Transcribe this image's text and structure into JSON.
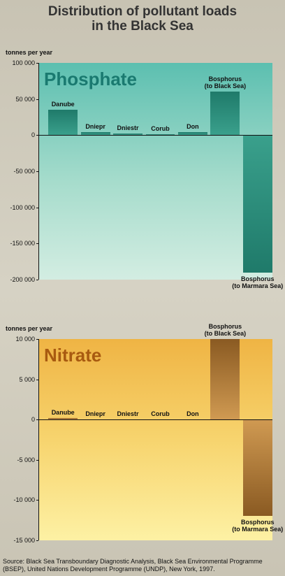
{
  "title": "Distribution of pollutant loads\nin the Black Sea",
  "source": "Source: Black Sea Transboundary Diagnostic Analysis, Black Sea Environmental Programme (BSEP), United Nations Development Programme (UNDP), New York, 1997.",
  "chart_data": [
    {
      "type": "bar",
      "title": "Phosphate",
      "y_label": "tonnes per year",
      "categories": [
        "Danube",
        "Dniepr",
        "Dniestr",
        "Corub",
        "Don",
        "Bosphorus\n(to Black Sea)",
        "Bosphorus\n(to Marmara Sea)"
      ],
      "values": [
        35000,
        4000,
        2000,
        1000,
        4000,
        60000,
        -190000
      ],
      "color": "#2a8a78",
      "ylim": [
        -200000,
        100000
      ],
      "yticks": [
        {
          "value": -200000,
          "label": "-200 000"
        },
        {
          "value": -150000,
          "label": "-150 000"
        },
        {
          "value": -100000,
          "label": "-100 000"
        },
        {
          "value": -50000,
          "label": "-50 000"
        },
        0,
        {
          "value": 50000,
          "label": "50 000"
        },
        {
          "value": 100000,
          "label": "100 000"
        }
      ]
    },
    {
      "type": "bar",
      "title": "Nitrate",
      "y_label": "tonnes per year",
      "categories": [
        "Danube",
        "Dniepr",
        "Dniestr",
        "Corub",
        "Don",
        "Bosphorus\n(to Black Sea)",
        "Bosphorus\n(to Marmara Sea)"
      ],
      "values": [
        200,
        0,
        0,
        0,
        0,
        10000,
        -12000
      ],
      "color": "#9c6b2f",
      "ylim": [
        -15000,
        10000
      ],
      "yticks": [
        {
          "value": -15000,
          "label": "-15 000"
        },
        {
          "value": -10000,
          "label": "-10 000"
        },
        {
          "value": -5000,
          "label": "-5 000"
        },
        0,
        {
          "value": 5000,
          "label": "5 000"
        },
        {
          "value": 10000,
          "label": "10 000"
        }
      ]
    }
  ]
}
